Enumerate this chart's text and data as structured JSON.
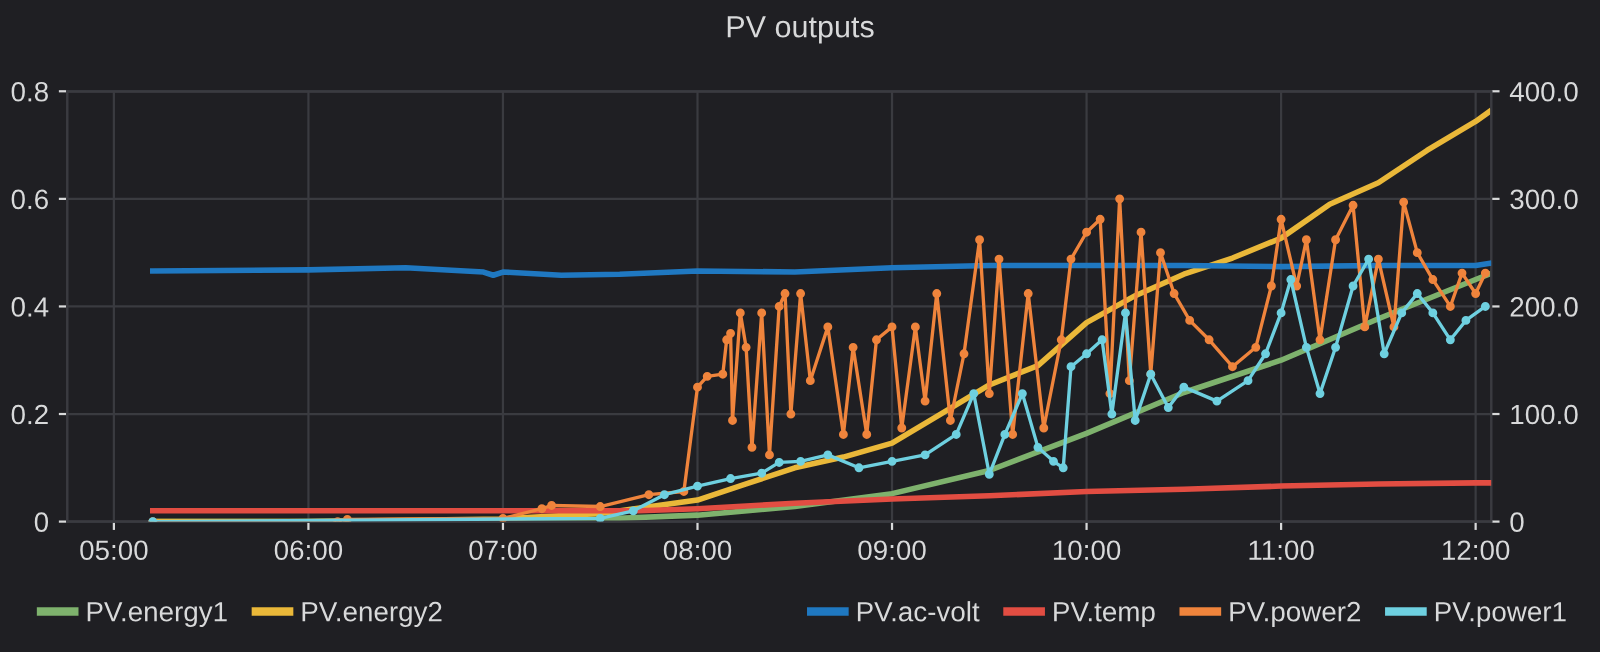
{
  "chart_data": {
    "type": "line",
    "title": "PV outputs",
    "xlim": [
      4.76,
      12.08
    ],
    "xticks": [
      {
        "value": 5,
        "label": "05:00"
      },
      {
        "value": 6,
        "label": "06:00"
      },
      {
        "value": 7,
        "label": "07:00"
      },
      {
        "value": 8,
        "label": "08:00"
      },
      {
        "value": 9,
        "label": "09:00"
      },
      {
        "value": 10,
        "label": "10:00"
      },
      {
        "value": 11,
        "label": "11:00"
      },
      {
        "value": 12,
        "label": "12:00"
      }
    ],
    "ylim": [
      0,
      0.8
    ],
    "yticks": [
      0,
      0.2,
      0.4,
      0.6,
      0.8
    ],
    "y2lim": [
      0,
      400
    ],
    "y2ticks": [
      0,
      {
        "value": 100,
        "label": "100.0"
      },
      {
        "value": 200,
        "label": "200.0"
      },
      {
        "value": 300,
        "label": "300.0"
      },
      {
        "value": 400,
        "label": "400.0"
      }
    ],
    "grid": true,
    "legend": "bottom",
    "line_style": "solid",
    "series": [
      {
        "name": "PV.energy1",
        "color": "#7eb26d",
        "x": [
          5.2,
          6,
          7,
          7.5,
          8,
          8.5,
          9,
          9.5,
          10,
          10.5,
          11,
          11.5,
          12,
          12.07
        ],
        "values": [
          0,
          0,
          0.002,
          0.005,
          0.012,
          0.028,
          0.052,
          0.095,
          0.164,
          0.24,
          0.3,
          0.377,
          0.45,
          0.46
        ]
      },
      {
        "name": "PV.energy2",
        "color": "#eab839",
        "x": [
          5.2,
          6,
          7,
          7.5,
          8,
          8.25,
          8.5,
          8.75,
          9,
          9.25,
          9.5,
          9.75,
          10,
          10.25,
          10.5,
          10.75,
          11,
          11.25,
          11.5,
          11.75,
          12,
          12.07
        ],
        "values": [
          0,
          0,
          0.005,
          0.015,
          0.04,
          0.07,
          0.1,
          0.12,
          0.146,
          0.2,
          0.254,
          0.29,
          0.37,
          0.42,
          0.46,
          0.49,
          0.527,
          0.59,
          0.63,
          0.69,
          0.744,
          0.762
        ]
      },
      {
        "name": "PV.ac-volt",
        "color": "#1f78c1",
        "axis": "y2",
        "x": [
          5.2,
          6,
          6.5,
          6.9,
          6.95,
          7,
          7.3,
          7.6,
          8,
          8.5,
          9,
          9.5,
          10,
          10.5,
          11,
          11.5,
          12,
          12.07
        ],
        "values": [
          233,
          234,
          236,
          232,
          229,
          232,
          229,
          230,
          233,
          232,
          236,
          238,
          238,
          238,
          237,
          238,
          238,
          240
        ]
      },
      {
        "name": "PV.temp",
        "color": "#e24d42",
        "axis": "y2",
        "x": [
          5.2,
          7.7,
          8,
          8.5,
          9,
          9.5,
          10,
          10.5,
          11,
          11.5,
          12,
          12.07
        ],
        "values": [
          10,
          10,
          12,
          17,
          21,
          24,
          28,
          30,
          33,
          35,
          36,
          36
        ]
      },
      {
        "name": "PV.power2",
        "color": "#ef843c",
        "axis": "y2",
        "marker": "circle",
        "x": [
          5.2,
          6.15,
          6.2,
          7.0,
          7.2,
          7.25,
          7.5,
          7.75,
          7.93,
          8.0,
          8.05,
          8.13,
          8.15,
          8.17,
          8.18,
          8.22,
          8.25,
          8.28,
          8.33,
          8.37,
          8.42,
          8.45,
          8.48,
          8.53,
          8.58,
          8.67,
          8.75,
          8.8,
          8.87,
          8.92,
          9.0,
          9.05,
          9.12,
          9.17,
          9.23,
          9.3,
          9.37,
          9.45,
          9.5,
          9.55,
          9.62,
          9.7,
          9.78,
          9.87,
          9.92,
          10.0,
          10.07,
          10.12,
          10.17,
          10.22,
          10.28,
          10.33,
          10.38,
          10.45,
          10.53,
          10.63,
          10.75,
          10.87,
          10.95,
          11.0,
          11.08,
          11.13,
          11.2,
          11.28,
          11.37,
          11.43,
          11.5,
          11.58,
          11.63,
          11.7,
          11.78,
          11.87,
          11.93,
          12.0,
          12.05
        ],
        "values": [
          0,
          0,
          2,
          3,
          12,
          15,
          14,
          25,
          28,
          125,
          135,
          137,
          169,
          175,
          94,
          194,
          162,
          69,
          194,
          62,
          200,
          212,
          100,
          212,
          131,
          181,
          81,
          162,
          81,
          169,
          181,
          87,
          181,
          112,
          212,
          94,
          156,
          262,
          119,
          244,
          81,
          212,
          87,
          169,
          244,
          269,
          281,
          119,
          300,
          131,
          269,
          137,
          250,
          212,
          187,
          169,
          144,
          162,
          219,
          281,
          219,
          262,
          169,
          262,
          294,
          181,
          244,
          181,
          297,
          250,
          225,
          200,
          231,
          212,
          231
        ]
      },
      {
        "name": "PV.power1",
        "color": "#6ed0e0",
        "axis": "y2",
        "marker": "circle",
        "x": [
          5.2,
          7.5,
          7.67,
          7.83,
          8.0,
          8.17,
          8.33,
          8.42,
          8.53,
          8.67,
          8.83,
          9.0,
          9.17,
          9.33,
          9.42,
          9.5,
          9.58,
          9.67,
          9.75,
          9.83,
          9.88,
          9.92,
          10.0,
          10.08,
          10.13,
          10.2,
          10.25,
          10.33,
          10.42,
          10.5,
          10.67,
          10.83,
          10.92,
          11.0,
          11.05,
          11.13,
          11.2,
          11.28,
          11.37,
          11.45,
          11.53,
          11.62,
          11.7,
          11.78,
          11.87,
          11.95,
          12.05
        ],
        "values": [
          0,
          3,
          10,
          25,
          33,
          40,
          45,
          55,
          56,
          62,
          50,
          56,
          62,
          81,
          119,
          44,
          81,
          119,
          69,
          56,
          50,
          144,
          156,
          169,
          100,
          194,
          94,
          137,
          106,
          125,
          112,
          131,
          156,
          194,
          225,
          162,
          119,
          162,
          219,
          244,
          156,
          194,
          212,
          194,
          169,
          187,
          200
        ]
      }
    ]
  }
}
